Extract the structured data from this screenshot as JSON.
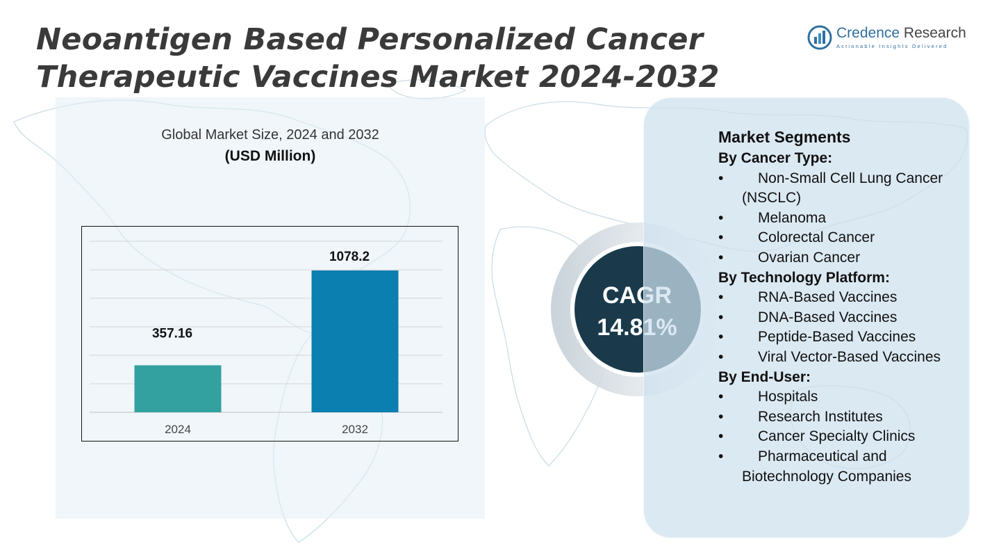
{
  "title": {
    "line1": "Neoantigen Based Personalized Cancer",
    "line2": "Therapeutic Vaccines Market  2024-2032"
  },
  "brand": {
    "name_part1": "Credence",
    "name_part2": " Research",
    "tagline": "Actionable Insights Delivered"
  },
  "chart_header": {
    "title": "Global Market Size, 2024 and 2032",
    "unit": "(USD Million)"
  },
  "chart_data": {
    "type": "bar",
    "categories": [
      "2024",
      "2032"
    ],
    "values": [
      357.16,
      1078.2
    ],
    "value_labels": [
      "357.16",
      "1078.2"
    ],
    "ylim": [
      0,
      1300
    ],
    "grid": true,
    "colors": [
      "#33a1a0",
      "#0a7fb0"
    ]
  },
  "cagr": {
    "label": "CAGR",
    "value": "14.81%"
  },
  "segments": {
    "heading": "Market Segments",
    "groups": [
      {
        "title": "By Cancer Type:",
        "items": [
          "Non-Small Cell Lung Cancer (NSCLC)",
          "Melanoma",
          "Colorectal Cancer",
          "Ovarian Cancer"
        ]
      },
      {
        "title": "By Technology Platform:",
        "items": [
          "RNA-Based Vaccines",
          "DNA-Based Vaccines",
          "Peptide-Based Vaccines",
          "Viral Vector-Based Vaccines"
        ]
      },
      {
        "title": "By End-User:",
        "items": [
          "Hospitals",
          "Research Institutes",
          "Cancer Specialty Clinics",
          "Pharmaceutical and Biotechnology Companies"
        ]
      }
    ]
  },
  "theme": {
    "circle_dark": "#1a3a4c",
    "panel_bg": "#cde1ee",
    "title_color": "#3a3a3a",
    "brand_blue": "#2f6f9f"
  }
}
